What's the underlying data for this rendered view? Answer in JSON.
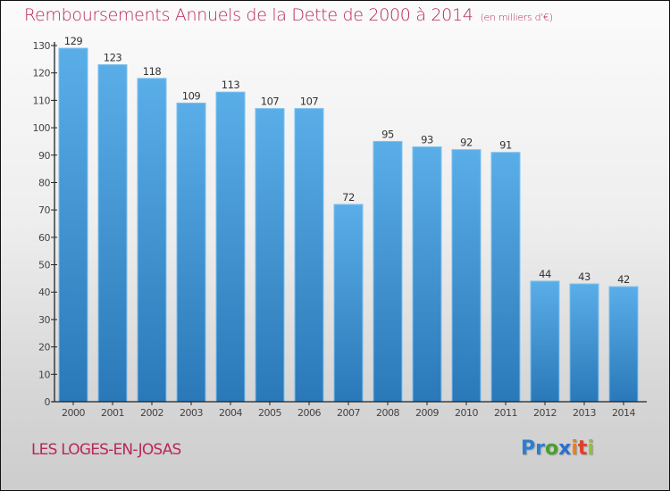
{
  "header": {
    "title": "Remboursements Annuels de la Dette de 2000 à 2014",
    "unit": "(en milliers d'€)"
  },
  "footer": {
    "commune": "LES LOGES-EN-JOSAS",
    "logo_letters": [
      {
        "ch": "P",
        "color": "#2a7fd4"
      },
      {
        "ch": "r",
        "color": "#2a7fd4"
      },
      {
        "ch": "o",
        "color": "#4aa02c"
      },
      {
        "ch": "x",
        "color": "#2a6fd0"
      },
      {
        "ch": "i",
        "color": "#e8801a"
      },
      {
        "ch": "t",
        "color": "#e0402a"
      },
      {
        "ch": "i",
        "color": "#8ac33a"
      }
    ]
  },
  "colors": {
    "title": "#b8275c",
    "bar_top": "#5aaee8",
    "bar_bottom": "#2a78b8",
    "bar_edge": "#7cc0f0"
  },
  "chart_data": {
    "type": "bar",
    "title": "Remboursements Annuels de la Dette de 2000 à 2014",
    "subtitle": "(en milliers d'€)",
    "xlabel": "",
    "ylabel": "",
    "categories": [
      "2000",
      "2001",
      "2002",
      "2003",
      "2004",
      "2005",
      "2006",
      "2007",
      "2008",
      "2009",
      "2010",
      "2011",
      "2012",
      "2013",
      "2014"
    ],
    "values": [
      129,
      123,
      118,
      109,
      113,
      107,
      107,
      72,
      95,
      93,
      92,
      91,
      44,
      43,
      42
    ],
    "ylim": [
      0,
      130
    ],
    "yticks": [
      0,
      10,
      20,
      30,
      40,
      50,
      60,
      70,
      80,
      90,
      100,
      110,
      120,
      130
    ],
    "grid": false,
    "legend": "none",
    "data_labels": true
  }
}
